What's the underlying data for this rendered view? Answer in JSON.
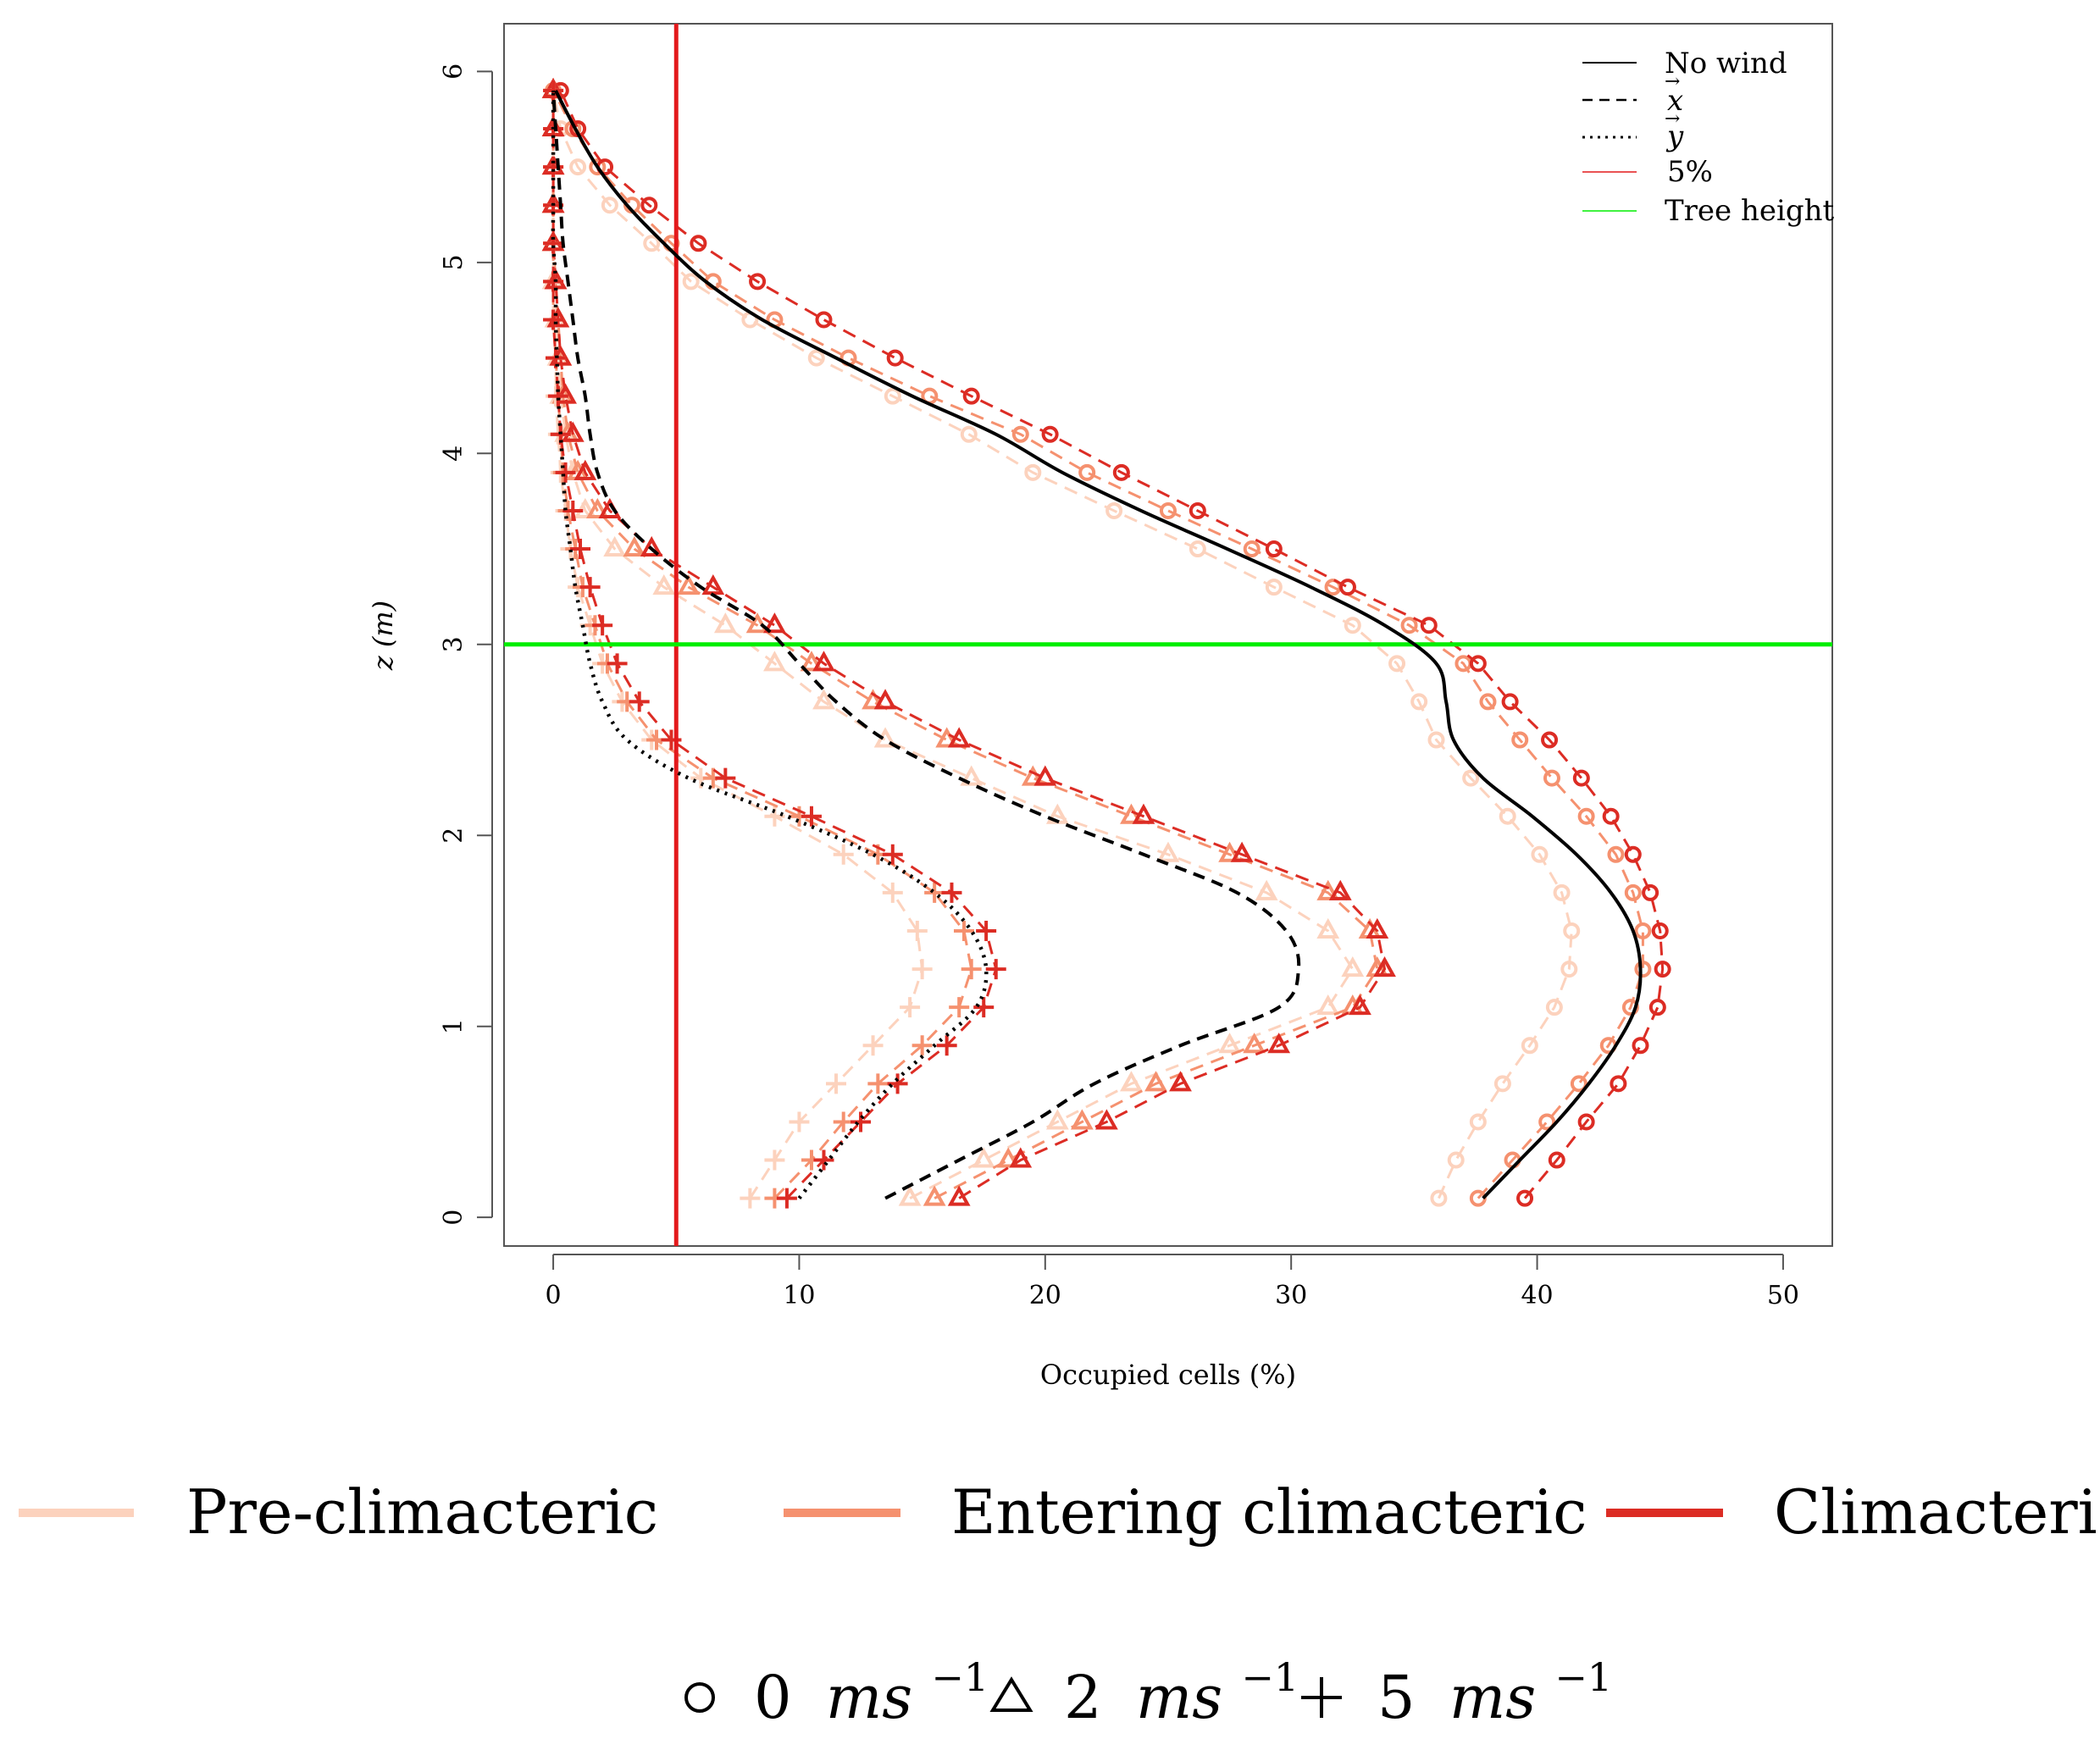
{
  "chart_data": {
    "type": "line",
    "xlabel": "Occupied cells (%)",
    "ylabel": "z (m)",
    "xlim": [
      -2,
      52
    ],
    "ylim": [
      -0.15,
      6.25
    ],
    "x_ticks": [
      "0",
      "10",
      "20",
      "30",
      "40",
      "50"
    ],
    "y_ticks": [
      "0",
      "1",
      "2",
      "3",
      "4",
      "5",
      "6"
    ],
    "grid": false,
    "reference_lines": [
      {
        "name": "5%",
        "orientation": "vertical",
        "value": 5,
        "color": "#e31a1c"
      },
      {
        "name": "Tree height",
        "orientation": "horizontal",
        "value": 3,
        "color": "#00ee00"
      }
    ],
    "legend_top_right": [
      {
        "label": "No wind",
        "style": "solid",
        "color": "#000000"
      },
      {
        "label": "x",
        "style": "dashed",
        "color": "#000000"
      },
      {
        "label": "y",
        "style": "dotted",
        "color": "#000000"
      },
      {
        "label": "5%",
        "style": "solid",
        "color": "#e31a1c"
      },
      {
        "label": "Tree height",
        "style": "solid",
        "color": "#00ee00"
      }
    ],
    "legend_groups": [
      {
        "label": "Pre-climacteric",
        "color": "#fcd2bd"
      },
      {
        "label": "Entering climacteric",
        "color": "#f5916f"
      },
      {
        "label": "Climacteric",
        "color": "#dc2c24"
      }
    ],
    "legend_speeds": [
      {
        "symbol": "circle",
        "value": "0",
        "unit": "ms",
        "exp": "−1"
      },
      {
        "symbol": "triangle",
        "value": "2",
        "unit": "ms",
        "exp": "−1"
      },
      {
        "symbol": "plus",
        "value": "5",
        "unit": "ms",
        "exp": "−1"
      }
    ],
    "z": [
      0.1,
      0.3,
      0.5,
      0.7,
      0.9,
      1.1,
      1.3,
      1.5,
      1.7,
      1.9,
      2.1,
      2.3,
      2.5,
      2.7,
      2.9,
      3.1,
      3.3,
      3.5,
      3.7,
      3.9,
      4.1,
      4.3,
      4.5,
      4.7,
      4.9,
      5.1,
      5.3,
      5.5,
      5.7,
      5.9
    ],
    "mean_curves": [
      {
        "name": "No wind",
        "style": "solid",
        "x": [
          37.8,
          39.3,
          40.8,
          42.1,
          43.2,
          44.0,
          44.2,
          43.9,
          43.0,
          41.6,
          39.8,
          37.8,
          36.6,
          36.3,
          35.9,
          33.8,
          30.8,
          27.4,
          23.9,
          20.7,
          18.0,
          14.6,
          11.5,
          8.5,
          6.2,
          4.5,
          3.0,
          1.8,
          0.9,
          0.1
        ]
      },
      {
        "name": "x",
        "style": "dashed",
        "x": [
          13.5,
          16.5,
          19.5,
          22.0,
          25.5,
          29.5,
          30.3,
          29.8,
          27.8,
          24.0,
          20.0,
          16.5,
          13.5,
          11.5,
          10.0,
          8.5,
          6.0,
          4.0,
          2.5,
          1.8,
          1.5,
          1.3,
          1.0,
          0.8,
          0.6,
          0.4,
          0.3,
          0.2,
          0.1,
          0.0
        ]
      },
      {
        "name": "y",
        "style": "dotted",
        "x": [
          10.0,
          11.2,
          12.4,
          13.8,
          15.5,
          17.2,
          17.6,
          17.0,
          15.5,
          13.0,
          9.5,
          5.5,
          3.0,
          2.0,
          1.5,
          1.2,
          0.9,
          0.7,
          0.5,
          0.4,
          0.3,
          0.2,
          0.15,
          0.1,
          0.1,
          0.0,
          0.0,
          0.0,
          0.0,
          0.0
        ]
      }
    ],
    "series": [
      {
        "name": "Pre-climacteric, 0 m/s",
        "group": "Pre-climacteric",
        "marker": "circle",
        "x": [
          36.0,
          36.7,
          37.6,
          38.6,
          39.7,
          40.7,
          41.3,
          41.4,
          41.0,
          40.1,
          38.8,
          37.3,
          35.9,
          35.2,
          34.3,
          32.5,
          29.3,
          26.2,
          22.8,
          19.5,
          16.9,
          13.8,
          10.7,
          8.0,
          5.6,
          4.0,
          2.3,
          1.0,
          0.3,
          0.0
        ]
      },
      {
        "name": "Entering climacteric, 0 m/s",
        "group": "Entering climacteric",
        "marker": "circle",
        "x": [
          37.6,
          39.0,
          40.4,
          41.7,
          42.9,
          43.8,
          44.3,
          44.3,
          43.9,
          43.2,
          42.0,
          40.6,
          39.3,
          38.0,
          37.0,
          34.8,
          31.7,
          28.4,
          25.0,
          21.7,
          19.0,
          15.3,
          12.0,
          9.0,
          6.5,
          4.8,
          3.2,
          1.8,
          0.8,
          0.0
        ]
      },
      {
        "name": "Climacteric, 0 m/s",
        "group": "Climacteric",
        "marker": "circle",
        "x": [
          39.5,
          40.8,
          42.0,
          43.3,
          44.2,
          44.9,
          45.1,
          45.0,
          44.6,
          43.9,
          43.0,
          41.8,
          40.5,
          38.9,
          37.6,
          35.6,
          32.3,
          29.3,
          26.2,
          23.1,
          20.2,
          17.0,
          13.9,
          11.0,
          8.3,
          5.9,
          3.9,
          2.1,
          1.0,
          0.3
        ]
      },
      {
        "name": "Pre-climacteric, 2 m/s",
        "group": "Pre-climacteric",
        "marker": "triangle",
        "x": [
          14.5,
          17.5,
          20.5,
          23.5,
          27.5,
          31.5,
          32.5,
          31.5,
          29.0,
          25.0,
          20.5,
          17.0,
          13.5,
          11.0,
          9.0,
          7.0,
          4.5,
          2.5,
          1.3,
          0.8,
          0.5,
          0.3,
          0.2,
          0.1,
          0.0,
          0.0,
          0.0,
          0.0,
          0.0,
          0.0
        ]
      },
      {
        "name": "Entering climacteric, 2 m/s",
        "group": "Entering climacteric",
        "marker": "triangle",
        "x": [
          15.5,
          18.5,
          21.5,
          24.5,
          28.5,
          32.5,
          33.5,
          33.2,
          31.5,
          27.5,
          23.5,
          19.5,
          16.0,
          13.0,
          10.5,
          8.3,
          5.5,
          3.3,
          1.8,
          1.0,
          0.6,
          0.4,
          0.3,
          0.2,
          0.1,
          0.0,
          0.0,
          0.0,
          0.0,
          0.0
        ]
      },
      {
        "name": "Climacteric, 2 m/s",
        "group": "Climacteric",
        "marker": "triangle",
        "x": [
          16.5,
          19.0,
          22.5,
          25.5,
          29.5,
          32.8,
          33.8,
          33.5,
          32.0,
          28.0,
          24.0,
          20.0,
          16.5,
          13.5,
          11.0,
          9.0,
          6.5,
          4.0,
          2.3,
          1.3,
          0.8,
          0.5,
          0.3,
          0.2,
          0.1,
          0.0,
          0.0,
          0.0,
          0.0,
          0.0
        ]
      },
      {
        "name": "Pre-climacteric, 5 m/s",
        "group": "Pre-climacteric",
        "marker": "plus",
        "x": [
          8.0,
          9.0,
          10.0,
          11.5,
          13.0,
          14.5,
          15.0,
          14.8,
          13.8,
          11.8,
          9.0,
          6.0,
          4.0,
          2.8,
          2.0,
          1.5,
          1.0,
          0.7,
          0.5,
          0.3,
          0.2,
          0.1,
          0.1,
          0.0,
          0.0,
          0.0,
          0.0,
          0.0,
          0.0,
          0.0
        ]
      },
      {
        "name": "Entering climacteric, 5 m/s",
        "group": "Entering climacteric",
        "marker": "plus",
        "x": [
          9.0,
          10.5,
          11.8,
          13.2,
          15.0,
          16.5,
          17.0,
          16.7,
          15.5,
          13.2,
          10.0,
          6.5,
          4.2,
          3.0,
          2.2,
          1.7,
          1.2,
          0.9,
          0.6,
          0.4,
          0.3,
          0.2,
          0.1,
          0.0,
          0.0,
          0.0,
          0.0,
          0.0,
          0.0,
          0.0
        ]
      },
      {
        "name": "Climacteric, 5 m/s",
        "group": "Climacteric",
        "marker": "plus",
        "x": [
          9.5,
          11.0,
          12.5,
          14.0,
          16.0,
          17.5,
          18.0,
          17.6,
          16.2,
          13.8,
          10.5,
          7.0,
          4.8,
          3.5,
          2.6,
          2.0,
          1.5,
          1.1,
          0.8,
          0.5,
          0.3,
          0.2,
          0.1,
          0.0,
          0.0,
          0.0,
          0.0,
          0.0,
          0.0,
          0.0
        ]
      }
    ]
  }
}
